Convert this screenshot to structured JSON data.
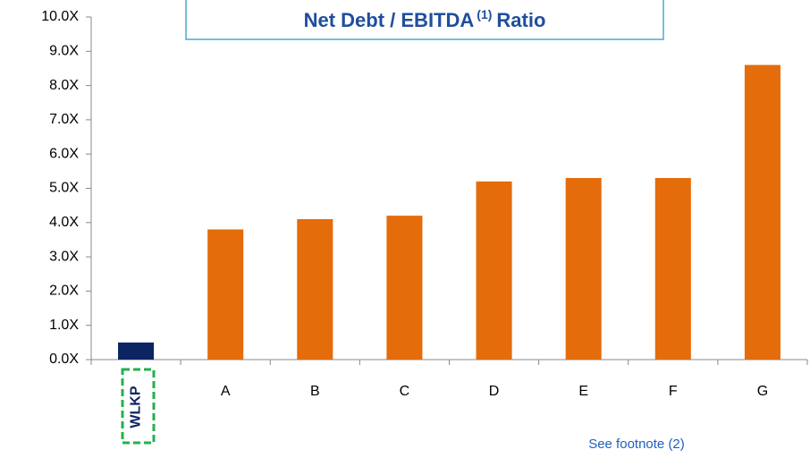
{
  "chart_data": {
    "type": "bar",
    "title": "Net Debt / EBITDA",
    "title_superscript": "(1)",
    "title_end": "Ratio",
    "categories": [
      "WLKP",
      "A",
      "B",
      "C",
      "D",
      "E",
      "F",
      "G"
    ],
    "values": [
      0.5,
      3.8,
      4.1,
      4.2,
      5.2,
      5.3,
      5.3,
      8.6
    ],
    "colors": [
      "#0c2461",
      "#e46c0a",
      "#e46c0a",
      "#e46c0a",
      "#e46c0a",
      "#e46c0a",
      "#e46c0a",
      "#e46c0a"
    ],
    "ylim": [
      0,
      10
    ],
    "yticks": [
      {
        "value": 0,
        "label": "0.0X"
      },
      {
        "value": 1,
        "label": "1.0X"
      },
      {
        "value": 2,
        "label": "2.0X"
      },
      {
        "value": 3,
        "label": "3.0X"
      },
      {
        "value": 4,
        "label": "4.0X"
      },
      {
        "value": 5,
        "label": "5.0X"
      },
      {
        "value": 6,
        "label": "6.0X"
      },
      {
        "value": 7,
        "label": "7.0X"
      },
      {
        "value": 8,
        "label": "8.0X"
      },
      {
        "value": 9,
        "label": "9.0X"
      },
      {
        "value": 10,
        "label": "10.0X"
      }
    ],
    "grid": false,
    "annotation": "See footnote (2)"
  }
}
